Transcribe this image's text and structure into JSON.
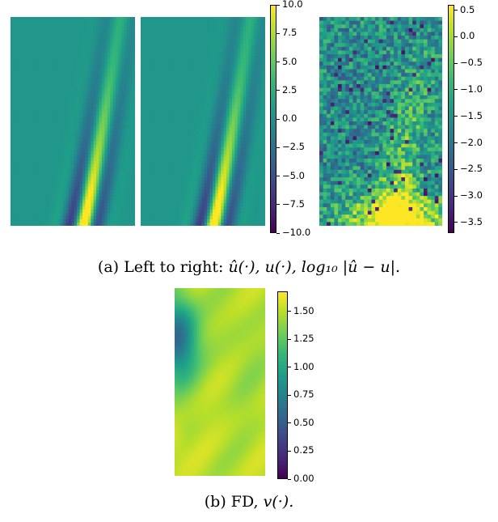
{
  "figure_a": {
    "caption": {
      "prefix": "(a) Left to right: ",
      "math": "û(·), u(·), log₁₀ |û − u|."
    },
    "colorbar_left": {
      "ticks": [
        "10.0",
        "7.5",
        "5.0",
        "2.5",
        "0.0",
        "−2.5",
        "−5.0",
        "−7.5",
        "−10.0"
      ]
    },
    "colorbar_right": {
      "ticks": [
        "0.5",
        "0.0",
        "−0.5",
        "−1.0",
        "−1.5",
        "−2.0",
        "−2.5",
        "−3.0",
        "−3.5"
      ]
    }
  },
  "figure_b": {
    "caption": {
      "prefix": "(b) FD, ",
      "math": "v(·)."
    },
    "colorbar": {
      "ticks": [
        "1.50",
        "1.25",
        "1.00",
        "0.75",
        "0.50",
        "0.25",
        "0.00"
      ]
    }
  },
  "chart_data": [
    {
      "type": "heatmap",
      "id": "u_hat",
      "title": "",
      "colormap": "viridis",
      "vmin": -10.0,
      "vmax": 10.0,
      "description_of_field": "uniform ~0.5 background with a thin curved positive/negative wave band starting near the bottom-center (strongest ~10 / -10) and sweeping up-right to the top"
    },
    {
      "type": "heatmap",
      "id": "u",
      "title": "",
      "colormap": "viridis",
      "vmin": -10.0,
      "vmax": 10.0
    },
    {
      "type": "heatmap",
      "id": "log10_abs_error",
      "title": "",
      "colormap": "viridis",
      "vmin": -3.7,
      "vmax": 0.6
    },
    {
      "type": "heatmap",
      "id": "v_FD",
      "title": "",
      "colormap": "viridis",
      "vmin": 0.0,
      "vmax": 1.68
    }
  ],
  "colors": {
    "viridis": [
      "#440154",
      "#482878",
      "#3e4989",
      "#31688e",
      "#26828e",
      "#1f9e89",
      "#35b779",
      "#6ece58",
      "#b5de2b",
      "#fde725"
    ]
  }
}
